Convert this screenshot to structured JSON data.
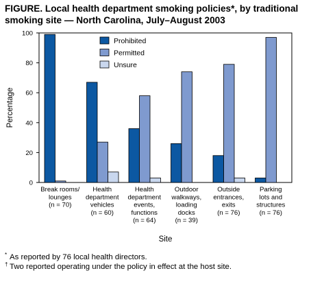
{
  "title": "FIGURE. Local health department smoking policies*, by traditional smoking site — North Carolina, July–August 2003",
  "footnotes": [
    {
      "mark": "*",
      "text": "As reported by 76 local health directors."
    },
    {
      "mark": "†",
      "text": "Two reported operating under the policy in effect at the host site."
    }
  ],
  "chart_data": {
    "type": "bar",
    "title": "FIGURE. Local health department smoking policies*, by traditional smoking site — North Carolina, July–August 2003",
    "xlabel": "Site",
    "ylabel": "Percentage",
    "ylim": [
      0,
      100
    ],
    "yticks": [
      0,
      20,
      40,
      60,
      80,
      100
    ],
    "grid": false,
    "legend_position": "top-center",
    "categories": [
      [
        "Break rooms/",
        "lounges",
        "(n = 70)"
      ],
      [
        "Health",
        "department",
        "vehicles",
        "(n = 60)"
      ],
      [
        "Health",
        "department",
        "events,",
        "functions",
        "(n = 64)"
      ],
      [
        "Outdoor",
        "walkways,",
        "loading",
        "docks",
        "(n = 39)"
      ],
      [
        "Outside",
        "entrances,",
        "exits",
        "(n = 76)"
      ],
      [
        "Parking",
        "lots and",
        "structures",
        "(n = 76)"
      ]
    ],
    "series": [
      {
        "name": "Prohibited",
        "color": "#0c58a2",
        "values": [
          99,
          67,
          36,
          26,
          18,
          3
        ]
      },
      {
        "name": "Permitted",
        "color": "#7f9acf",
        "values": [
          1,
          27,
          58,
          74,
          79,
          97
        ]
      },
      {
        "name": "Unsure",
        "color": "#c9d7ee",
        "values": [
          0,
          7,
          3,
          0,
          3,
          0
        ]
      }
    ]
  }
}
